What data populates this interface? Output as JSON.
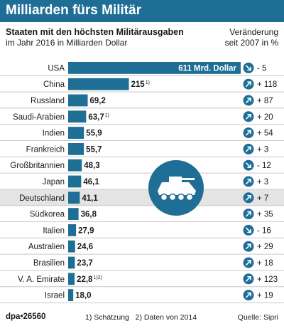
{
  "title": "Milliarden fürs Militär",
  "subtitle_line1": "Staaten mit den höchsten Militärausgaben",
  "subtitle_line2": "im Jahr 2016 in Milliarden Dollar",
  "change_header_line1": "Veränderung",
  "change_header_line2": "seit 2007 in %",
  "colors": {
    "bar": "#1f6e96",
    "header": "#1f6e96",
    "highlight_row": "#e4e4e4",
    "row_line": "#c9c9c9"
  },
  "icons": {
    "decrease": "arrow-down-icon",
    "increase": "arrow-up-icon",
    "illustration": "armored-vehicle-icon"
  },
  "chart_data": {
    "type": "bar",
    "orientation": "horizontal",
    "categories": [
      "USA",
      "China",
      "Russland",
      "Saudi-Arabien",
      "Indien",
      "Frankreich",
      "Großbritannien",
      "Japan",
      "Deutschland",
      "Südkorea",
      "Italien",
      "Australien",
      "Brasilien",
      "V. A. Emirate",
      "Israel"
    ],
    "values": [
      611,
      215,
      69.2,
      63.7,
      55.9,
      55.7,
      48.3,
      46.1,
      41.1,
      36.8,
      27.9,
      24.6,
      23.7,
      22.8,
      18.0
    ],
    "value_labels": [
      "611 Mrd. Dollar",
      "215",
      "69,2",
      "63,7",
      "55,9",
      "55,7",
      "48,3",
      "46,1",
      "41,1",
      "36,8",
      "27,9",
      "24,6",
      "23,7",
      "22,8",
      "18,0"
    ],
    "value_footnotes": [
      "",
      "1)",
      "",
      "1)",
      "",
      "",
      "",
      "",
      "",
      "",
      "",
      "",
      "",
      "1)2)",
      ""
    ],
    "change_labels": [
      "- 5",
      "+ 118",
      "+ 87",
      "+ 20",
      "+ 54",
      "+ 3",
      "- 12",
      "+ 3",
      "+ 7",
      "+ 35",
      "- 16",
      "+ 29",
      "+ 18",
      "+ 123",
      "+ 19"
    ],
    "change_direction": [
      "down",
      "up",
      "up",
      "up",
      "up",
      "up",
      "down",
      "up",
      "up",
      "up",
      "down",
      "up",
      "up",
      "up",
      "up"
    ],
    "highlight_category": "Deutschland",
    "xlim": [
      0,
      611
    ]
  },
  "footer": {
    "source_id": "dpa•26560",
    "note1": "1)  Schätzung",
    "note2": "2) Daten von 2014",
    "quelle": "Quelle: Sipri"
  }
}
